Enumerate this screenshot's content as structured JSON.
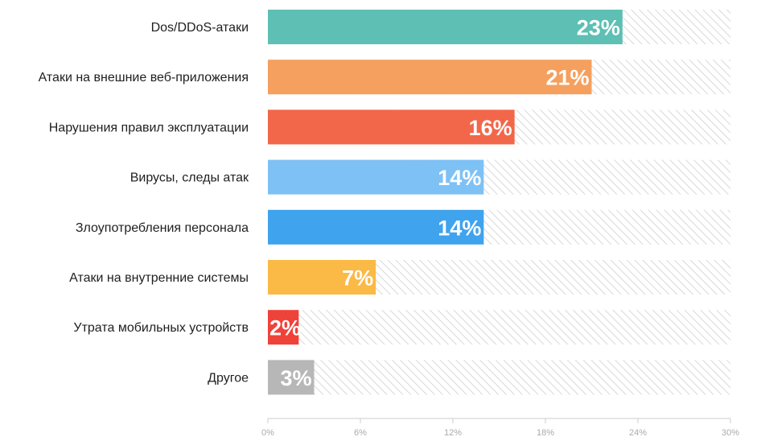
{
  "chart_data": {
    "type": "bar",
    "orientation": "horizontal",
    "categories": [
      "Dos/DDoS-атаки",
      "Атаки на внешние веб-приложения",
      "Нарушения правил эксплуатации",
      "Вирусы, следы атак",
      "Злоупотребления персонала",
      "Атаки на внутренние системы",
      "Утрата мобильных устройств",
      "Другое"
    ],
    "values": [
      23,
      21,
      16,
      14,
      14,
      7,
      2,
      3
    ],
    "value_labels": [
      "23%",
      "21%",
      "16%",
      "14%",
      "14%",
      "7%",
      "2%",
      "3%"
    ],
    "bar_colors": [
      "#5ebfb4",
      "#f5a05e",
      "#f2674a",
      "#7ec1f5",
      "#3fa3ee",
      "#fbb946",
      "#ef4239",
      "#b7b7b7"
    ],
    "xlim": [
      0,
      30
    ],
    "x_ticks": [
      0,
      6,
      12,
      18,
      24,
      30
    ],
    "x_tick_labels": [
      "0%",
      "6%",
      "12%",
      "18%",
      "24%",
      "30%"
    ],
    "background": "hatched",
    "hatch_color": "#c8c8c8",
    "title": "",
    "xlabel": "",
    "ylabel": ""
  }
}
